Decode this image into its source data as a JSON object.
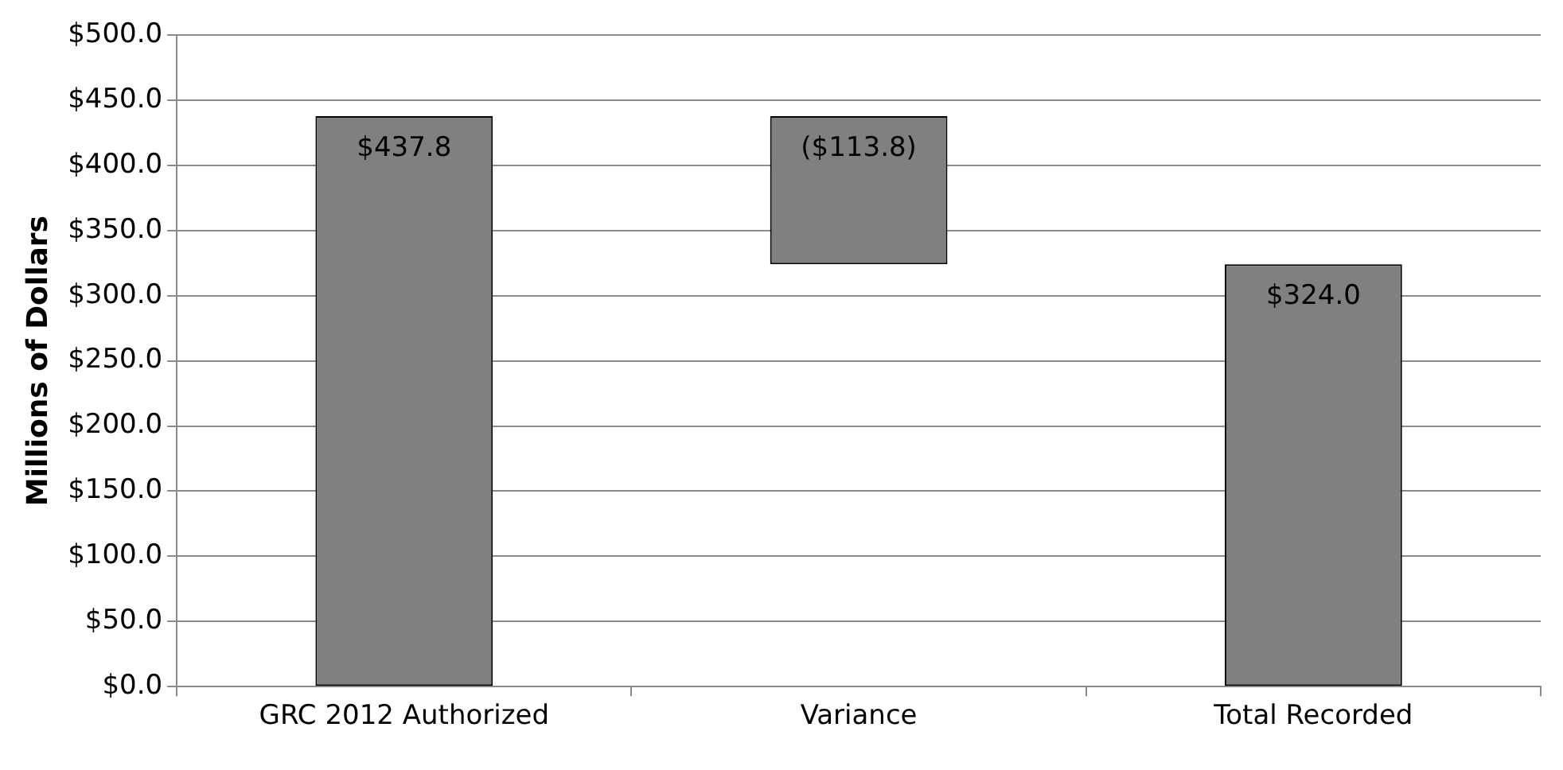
{
  "chart_data": {
    "type": "bar",
    "ylabel": "Millions of Dollars",
    "categories": [
      "GRC 2012 Authorized",
      "Variance",
      "Total Recorded"
    ],
    "values": [
      437.8,
      -113.8,
      324.0
    ],
    "base": [
      0,
      437.8,
      0
    ],
    "value_labels": [
      "$437.8",
      "($113.8)",
      "$324.0"
    ],
    "color": "#808080",
    "ylim": [
      0,
      500
    ],
    "yticks": [
      {
        "value": 0,
        "label": "$0.0"
      },
      {
        "value": 50,
        "label": "$50.0"
      },
      {
        "value": 100,
        "label": "$100.0"
      },
      {
        "value": 150,
        "label": "$150.0"
      },
      {
        "value": 200,
        "label": "$200.0"
      },
      {
        "value": 250,
        "label": "$250.0"
      },
      {
        "value": 300,
        "label": "$300.0"
      },
      {
        "value": 350,
        "label": "$350.0"
      },
      {
        "value": 400,
        "label": "$400.0"
      },
      {
        "value": 450,
        "label": "$450.0"
      },
      {
        "value": 500,
        "label": "$500.0"
      }
    ],
    "grid": "y"
  }
}
